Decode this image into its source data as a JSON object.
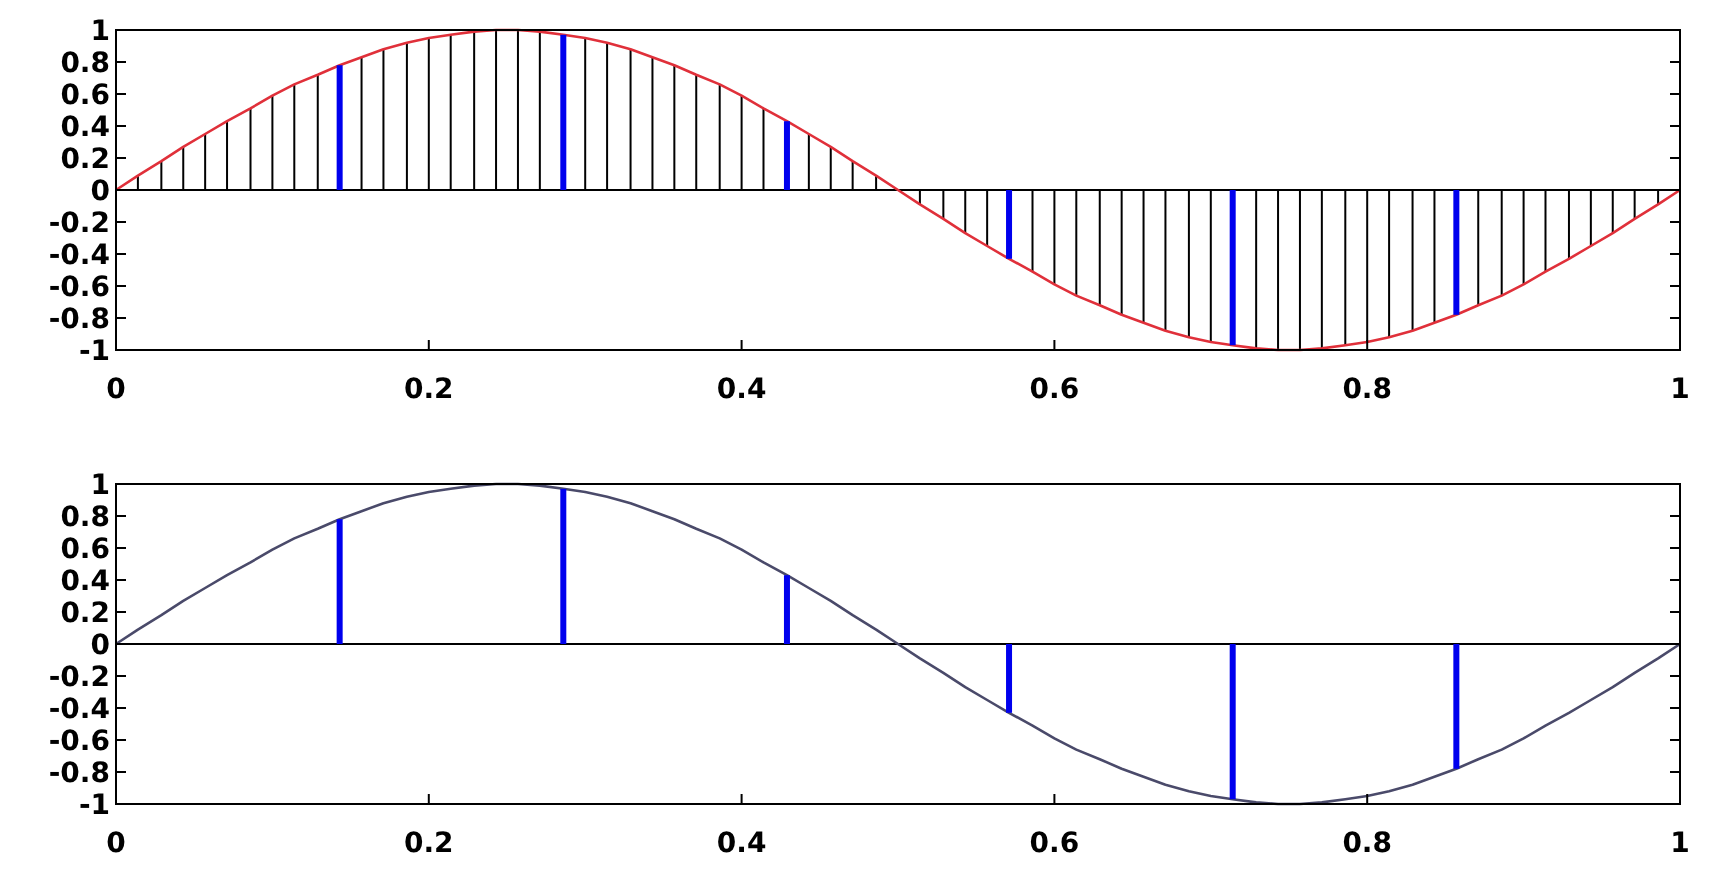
{
  "chart_data": [
    {
      "type": "line",
      "x": [
        0,
        0.014,
        0.029,
        0.043,
        0.057,
        0.071,
        0.086,
        0.1,
        0.114,
        0.129,
        0.143,
        0.157,
        0.171,
        0.186,
        0.2,
        0.214,
        0.229,
        0.243,
        0.257,
        0.271,
        0.286,
        0.3,
        0.314,
        0.329,
        0.343,
        0.357,
        0.371,
        0.386,
        0.4,
        0.414,
        0.429,
        0.443,
        0.457,
        0.471,
        0.486,
        0.5,
        0.514,
        0.529,
        0.543,
        0.557,
        0.571,
        0.586,
        0.6,
        0.614,
        0.629,
        0.643,
        0.657,
        0.671,
        0.686,
        0.7,
        0.714,
        0.729,
        0.743,
        0.757,
        0.771,
        0.786,
        0.8,
        0.814,
        0.829,
        0.843,
        0.857,
        0.871,
        0.886,
        0.9,
        0.914,
        0.929,
        0.943,
        0.957,
        0.971,
        0.986,
        1
      ],
      "series": [
        {
          "type": "bar",
          "color": "#000000",
          "values": [
            0,
            0.09,
            0.18,
            0.27,
            0.35,
            0.43,
            0.51,
            0.59,
            0.66,
            0.72,
            null,
            0.83,
            0.88,
            0.92,
            0.95,
            0.97,
            0.99,
            1,
            1,
            0.99,
            null,
            0.95,
            0.92,
            0.88,
            0.83,
            0.78,
            0.72,
            0.66,
            0.59,
            0.51,
            null,
            0.35,
            0.27,
            0.18,
            0.09,
            0,
            -0.09,
            -0.18,
            -0.27,
            -0.35,
            null,
            -0.51,
            -0.59,
            -0.66,
            -0.72,
            -0.78,
            -0.83,
            -0.88,
            -0.92,
            -0.95,
            null,
            -0.99,
            -1,
            -1,
            -0.99,
            -0.97,
            -0.95,
            -0.92,
            -0.88,
            -0.83,
            null,
            -0.72,
            -0.66,
            -0.59,
            -0.51,
            -0.43,
            -0.35,
            -0.27,
            -0.18,
            -0.09,
            0
          ]
        },
        {
          "color": "#e0303a",
          "values": [
            0,
            0.09,
            0.18,
            0.27,
            0.35,
            0.43,
            0.51,
            0.59,
            0.66,
            0.72,
            0.78,
            0.83,
            0.88,
            0.92,
            0.95,
            0.97,
            0.99,
            1,
            1,
            0.99,
            0.97,
            0.95,
            0.92,
            0.88,
            0.83,
            0.78,
            0.72,
            0.66,
            0.59,
            0.51,
            0.43,
            0.35,
            0.27,
            0.18,
            0.09,
            0,
            -0.09,
            -0.18,
            -0.27,
            -0.35,
            -0.43,
            -0.51,
            -0.59,
            -0.66,
            -0.72,
            -0.78,
            -0.83,
            -0.88,
            -0.92,
            -0.95,
            -0.97,
            -0.99,
            -1,
            -1,
            -0.99,
            -0.97,
            -0.95,
            -0.92,
            -0.88,
            -0.83,
            -0.78,
            -0.72,
            -0.66,
            -0.59,
            -0.51,
            -0.43,
            -0.35,
            -0.27,
            -0.18,
            -0.09,
            0
          ]
        },
        {
          "type": "bar",
          "color": "#0000ee",
          "x": [
            0.143,
            0.286,
            0.429,
            0.571,
            0.714,
            0.857
          ],
          "values": [
            0.78,
            0.97,
            0.43,
            -0.43,
            -0.97,
            -0.78
          ]
        }
      ],
      "marker": "none",
      "grid": false,
      "ref_lines": [
        {
          "axis": "y",
          "value": 0,
          "color": "#000000"
        }
      ],
      "xlim": [
        0,
        1
      ],
      "xticks": [
        0,
        0.2,
        0.4,
        0.6,
        0.8,
        1
      ],
      "ylim": [
        -1,
        1
      ],
      "yticks": [
        -1,
        -0.8,
        -0.6,
        -0.4,
        -0.2,
        0,
        0.2,
        0.4,
        0.6,
        0.8,
        1
      ]
    },
    {
      "type": "line",
      "x": [
        0,
        0.014,
        0.029,
        0.043,
        0.057,
        0.071,
        0.086,
        0.1,
        0.114,
        0.129,
        0.143,
        0.157,
        0.171,
        0.186,
        0.2,
        0.214,
        0.229,
        0.243,
        0.257,
        0.271,
        0.286,
        0.3,
        0.314,
        0.329,
        0.343,
        0.357,
        0.371,
        0.386,
        0.4,
        0.414,
        0.429,
        0.443,
        0.457,
        0.471,
        0.486,
        0.5,
        0.514,
        0.529,
        0.543,
        0.557,
        0.571,
        0.586,
        0.6,
        0.614,
        0.629,
        0.643,
        0.657,
        0.671,
        0.686,
        0.7,
        0.714,
        0.729,
        0.743,
        0.757,
        0.771,
        0.786,
        0.8,
        0.814,
        0.829,
        0.843,
        0.857,
        0.871,
        0.886,
        0.9,
        0.914,
        0.929,
        0.943,
        0.957,
        0.971,
        0.986,
        1
      ],
      "series": [
        {
          "color": "#4a4a6a",
          "values": [
            0,
            0.09,
            0.18,
            0.27,
            0.35,
            0.43,
            0.51,
            0.59,
            0.66,
            0.72,
            0.78,
            0.83,
            0.88,
            0.92,
            0.95,
            0.97,
            0.99,
            1,
            1,
            0.99,
            0.97,
            0.95,
            0.92,
            0.88,
            0.83,
            0.78,
            0.72,
            0.66,
            0.59,
            0.51,
            0.43,
            0.35,
            0.27,
            0.18,
            0.09,
            0,
            -0.09,
            -0.18,
            -0.27,
            -0.35,
            -0.43,
            -0.51,
            -0.59,
            -0.66,
            -0.72,
            -0.78,
            -0.83,
            -0.88,
            -0.92,
            -0.95,
            -0.97,
            -0.99,
            -1,
            -1,
            -0.99,
            -0.97,
            -0.95,
            -0.92,
            -0.88,
            -0.83,
            -0.78,
            -0.72,
            -0.66,
            -0.59,
            -0.51,
            -0.43,
            -0.35,
            -0.27,
            -0.18,
            -0.09,
            0
          ]
        },
        {
          "type": "bar",
          "color": "#0000ee",
          "x": [
            0.143,
            0.286,
            0.429,
            0.571,
            0.714,
            0.857
          ],
          "values": [
            0.78,
            0.97,
            0.43,
            -0.43,
            -0.97,
            -0.78
          ]
        }
      ],
      "marker": "none",
      "grid": false,
      "ref_lines": [
        {
          "axis": "y",
          "value": 0,
          "color": "#000000"
        }
      ],
      "xlim": [
        0,
        1
      ],
      "xticks": [
        0,
        0.2,
        0.4,
        0.6,
        0.8,
        1
      ],
      "ylim": [
        -1,
        1
      ],
      "yticks": [
        -1,
        -0.8,
        -0.6,
        -0.4,
        -0.2,
        0,
        0.2,
        0.4,
        0.6,
        0.8,
        1
      ]
    }
  ]
}
